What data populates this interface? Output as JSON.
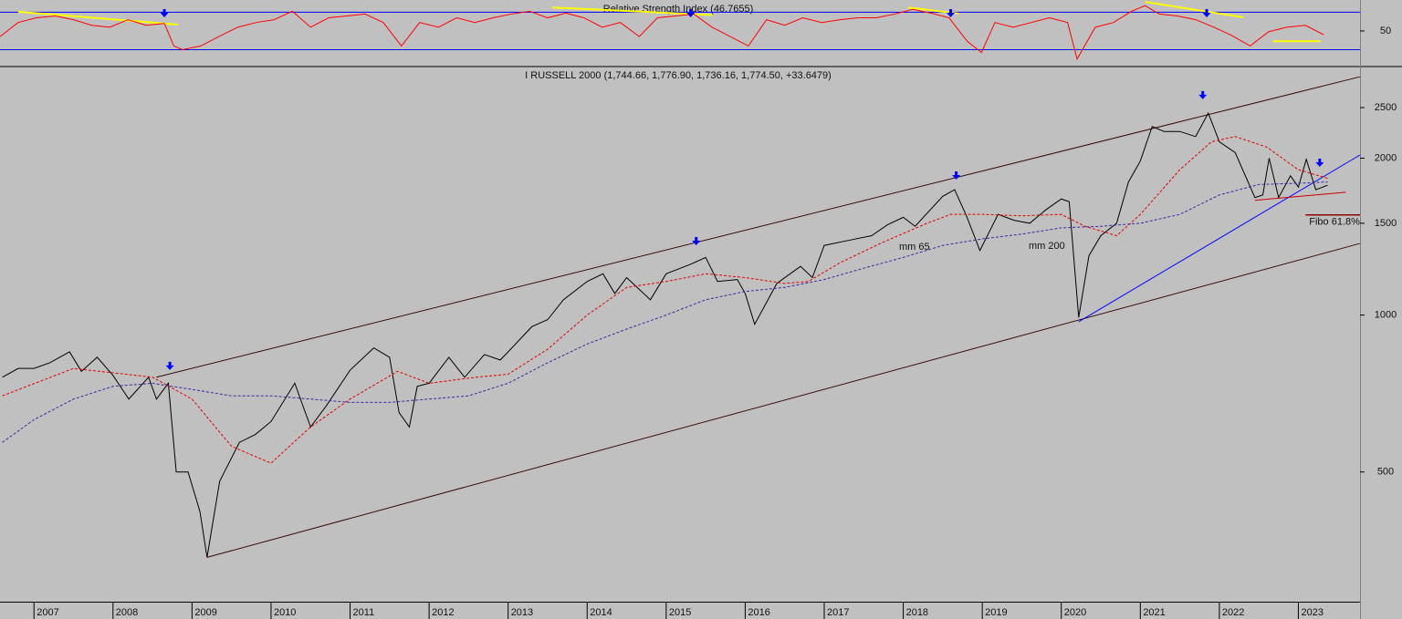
{
  "chart_data": [
    {
      "type": "line",
      "title": "Relative Strength Index (46.7655)",
      "xlim": [
        2006.57,
        2023.78
      ],
      "ylim": [
        13,
        83
      ],
      "yticks": [
        50
      ],
      "levels": [
        30,
        70
      ],
      "level_color": "#0000ff",
      "series": [
        {
          "color": "#ff0000",
          "x": [
            2006.57,
            2006.8,
            2007.03,
            2007.27,
            2007.5,
            2007.73,
            2007.96,
            2008.19,
            2008.42,
            2008.65,
            2008.77,
            2008.88,
            2009.11,
            2009.34,
            2009.58,
            2009.81,
            2010.04,
            2010.27,
            2010.5,
            2010.73,
            2010.96,
            2011.19,
            2011.42,
            2011.65,
            2011.88,
            2012.12,
            2012.35,
            2012.58,
            2012.81,
            2013.04,
            2013.27,
            2013.5,
            2013.73,
            2013.96,
            2014.19,
            2014.42,
            2014.66,
            2014.89,
            2015.12,
            2015.35,
            2015.58,
            2015.81,
            2016.04,
            2016.27,
            2016.5,
            2016.73,
            2016.97,
            2017.2,
            2017.43,
            2017.66,
            2017.89,
            2018.12,
            2018.35,
            2018.58,
            2018.81,
            2018.99,
            2019.16,
            2019.39,
            2019.62,
            2019.85,
            2020.08,
            2020.2,
            2020.43,
            2020.66,
            2020.89,
            2021.06,
            2021.24,
            2021.47,
            2021.7,
            2021.93,
            2022.16,
            2022.39,
            2022.62,
            2022.85,
            2023.09,
            2023.32
          ],
          "values": [
            44,
            59,
            64,
            66,
            62,
            56,
            54,
            62,
            56,
            58,
            34,
            30,
            34,
            44,
            54,
            59,
            62,
            71,
            54,
            64,
            66,
            68,
            59,
            34,
            59,
            54,
            64,
            59,
            64,
            68,
            71,
            64,
            69,
            64,
            54,
            59,
            44,
            64,
            66,
            68,
            54,
            44,
            34,
            62,
            56,
            64,
            59,
            62,
            64,
            64,
            68,
            73,
            69,
            64,
            39,
            27,
            59,
            54,
            59,
            64,
            59,
            20,
            54,
            59,
            71,
            77,
            68,
            66,
            62,
            54,
            45,
            34,
            49,
            54,
            56,
            46
          ]
        }
      ],
      "trend_lines": [
        {
          "color": "#ffff00",
          "x": [
            2006.8,
            2008.82
          ],
          "values": [
            70.5,
            56.8
          ]
        },
        {
          "color": "#ffff00",
          "x": [
            2013.56,
            2015.58
          ],
          "values": [
            75,
            67
          ]
        },
        {
          "color": "#ffff00",
          "x": [
            2018.06,
            2018.7
          ],
          "values": [
            75,
            68.5
          ]
        },
        {
          "color": "#ffff00",
          "x": [
            2021.06,
            2022.3
          ],
          "values": [
            81,
            64.6
          ]
        },
        {
          "color": "#ffff00",
          "x": [
            2022.68,
            2023.28
          ],
          "values": [
            39,
            39
          ]
        }
      ],
      "arrows": {
        "color": "#0000ff",
        "x": [
          2008.65,
          2015.31,
          2018.6,
          2021.84
        ]
      }
    },
    {
      "type": "line",
      "title": "I RUSSELL 2000 (1,744.66, 1,776.90, 1,736.16, 1,774.50, +33.6479)",
      "log_scale": true,
      "xlim": [
        2006.57,
        2023.78
      ],
      "xticks": [
        2007,
        2008,
        2009,
        2010,
        2011,
        2012,
        2013,
        2014,
        2015,
        2016,
        2017,
        2018,
        2019,
        2020,
        2021,
        2022,
        2023
      ],
      "ylim": [
        282,
        2985
      ],
      "yticks": [
        500,
        1000,
        1500,
        2000,
        2500
      ],
      "series": [
        {
          "color": "#000000",
          "x": [
            2006.6,
            2006.8,
            2007.0,
            2007.2,
            2007.45,
            2007.6,
            2007.8,
            2008.0,
            2008.2,
            2008.45,
            2008.55,
            2008.7,
            2008.8,
            2008.95,
            2009.1,
            2009.19,
            2009.35,
            2009.6,
            2009.8,
            2010.0,
            2010.3,
            2010.5,
            2010.7,
            2011.0,
            2011.3,
            2011.5,
            2011.62,
            2011.75,
            2011.85,
            2012.0,
            2012.25,
            2012.45,
            2012.7,
            2012.9,
            2013.0,
            2013.3,
            2013.5,
            2013.7,
            2014.0,
            2014.2,
            2014.35,
            2014.5,
            2014.8,
            2015.0,
            2015.3,
            2015.5,
            2015.65,
            2015.9,
            2016.0,
            2016.12,
            2016.4,
            2016.7,
            2016.85,
            2017.0,
            2017.3,
            2017.6,
            2017.8,
            2018.0,
            2018.15,
            2018.5,
            2018.65,
            2018.8,
            2018.97,
            2019.2,
            2019.4,
            2019.6,
            2019.8,
            2020.0,
            2020.1,
            2020.22,
            2020.35,
            2020.5,
            2020.7,
            2020.85,
            2021.0,
            2021.15,
            2021.3,
            2021.5,
            2021.7,
            2021.86,
            2022.0,
            2022.2,
            2022.45,
            2022.55,
            2022.63,
            2022.75,
            2022.9,
            2023.0,
            2023.1,
            2023.22,
            2023.37
          ],
          "values": [
            760,
            790,
            790,
            810,
            850,
            780,
            830,
            766,
            690,
            760,
            690,
            740,
            500,
            500,
            420,
            343,
            480,
            570,
            590,
            625,
            740,
            610,
            670,
            784,
            865,
            830,
            650,
            610,
            730,
            740,
            830,
            760,
            840,
            820,
            850,
            950,
            980,
            1070,
            1160,
            1200,
            1100,
            1180,
            1070,
            1200,
            1250,
            1290,
            1160,
            1170,
            1100,
            960,
            1150,
            1240,
            1180,
            1360,
            1390,
            1420,
            1490,
            1540,
            1480,
            1690,
            1740,
            1550,
            1330,
            1560,
            1520,
            1500,
            1590,
            1670,
            1650,
            990,
            1300,
            1420,
            1500,
            1800,
            1975,
            2300,
            2250,
            2250,
            2200,
            2440,
            2150,
            2050,
            1680,
            1700,
            2000,
            1680,
            1850,
            1760,
            1990,
            1740,
            1774.5
          ]
        },
        {
          "name": "mm 65",
          "color": "#e00000",
          "dashed": true,
          "x": [
            2006.6,
            2007.5,
            2008.5,
            2009.0,
            2009.5,
            2010.0,
            2010.5,
            2011.0,
            2011.6,
            2012.0,
            2012.6,
            2013.0,
            2013.5,
            2014.0,
            2014.5,
            2015.0,
            2015.5,
            2016.0,
            2016.5,
            2016.8,
            2017.2,
            2017.7,
            2018.3,
            2018.6,
            2019.0,
            2019.5,
            2020.0,
            2020.3,
            2020.7,
            2021.0,
            2021.5,
            2021.9,
            2022.2,
            2022.6,
            2023.0,
            2023.37
          ],
          "values": [
            700,
            790,
            760,
            690,
            560,
            520,
            610,
            690,
            780,
            740,
            760,
            770,
            860,
            1000,
            1130,
            1160,
            1200,
            1180,
            1150,
            1160,
            1260,
            1370,
            1500,
            1560,
            1560,
            1550,
            1560,
            1480,
            1420,
            1560,
            1900,
            2150,
            2200,
            2100,
            1900,
            1830
          ]
        },
        {
          "name": "mm 200",
          "color": "#3a2aa0",
          "dashed": true,
          "x": [
            2006.6,
            2007.0,
            2007.5,
            2008.0,
            2008.5,
            2009.0,
            2009.5,
            2010.0,
            2010.5,
            2011.0,
            2011.5,
            2012.0,
            2012.5,
            2013.0,
            2013.5,
            2014.0,
            2014.5,
            2015.0,
            2015.5,
            2016.0,
            2016.5,
            2017.0,
            2017.5,
            2018.0,
            2018.5,
            2019.0,
            2019.5,
            2020.0,
            2020.5,
            2021.0,
            2021.5,
            2022.0,
            2022.5,
            2023.0,
            2023.37
          ],
          "values": [
            570,
            630,
            690,
            730,
            740,
            720,
            700,
            700,
            690,
            680,
            680,
            690,
            700,
            740,
            810,
            880,
            940,
            1000,
            1070,
            1110,
            1130,
            1170,
            1230,
            1290,
            1360,
            1400,
            1430,
            1470,
            1480,
            1500,
            1560,
            1700,
            1780,
            1790,
            1800
          ]
        }
      ],
      "trend_lines": [
        {
          "color": "#3a0a0a",
          "x": [
            2008.55,
            2023.78
          ],
          "values": [
            760,
            2865
          ]
        },
        {
          "color": "#3a0a0a",
          "x": [
            2009.19,
            2023.78
          ],
          "values": [
            343,
            1372
          ]
        },
        {
          "color": "#0000ff",
          "x": [
            2020.22,
            2023.78
          ],
          "values": [
            971,
            2028
          ]
        },
        {
          "color": "#cc0000",
          "x": [
            2022.45,
            2023.6
          ],
          "values": [
            1660,
            1720
          ]
        }
      ],
      "annotations": [
        {
          "text": "Fibo 61.8%",
          "color": "#8b0000",
          "x": [
            2023.09,
            2023.78
          ],
          "value": 1556
        }
      ],
      "arrows": {
        "color": "#0000ff",
        "x": [
          2008.72,
          2015.38,
          2018.67,
          2021.79,
          2023.27
        ],
        "values": [
          791,
          1372,
          1834,
          2615,
          1940
        ]
      }
    }
  ]
}
